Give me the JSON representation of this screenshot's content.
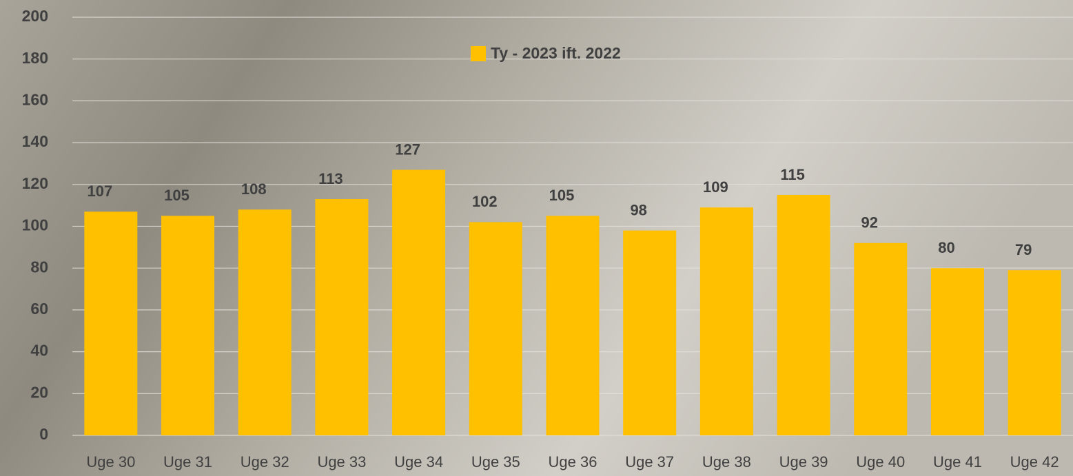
{
  "chart_data": {
    "type": "bar",
    "categories": [
      "Uge 30",
      "Uge 31",
      "Uge 32",
      "Uge 33",
      "Uge 34",
      "Uge 35",
      "Uge 36",
      "Uge 37",
      "Uge 38",
      "Uge 39",
      "Uge 40",
      "Uge 41",
      "Uge 42"
    ],
    "series": [
      {
        "name": "Ty - 2023 ift. 2022",
        "color": "#ffc000",
        "values": [
          107,
          105,
          108,
          113,
          127,
          102,
          105,
          98,
          109,
          115,
          92,
          80,
          79
        ]
      }
    ],
    "ylim": [
      0,
      200
    ],
    "yticks": [
      0,
      20,
      40,
      60,
      80,
      100,
      120,
      140,
      160,
      180,
      200
    ],
    "grid": true,
    "legend": "top"
  }
}
